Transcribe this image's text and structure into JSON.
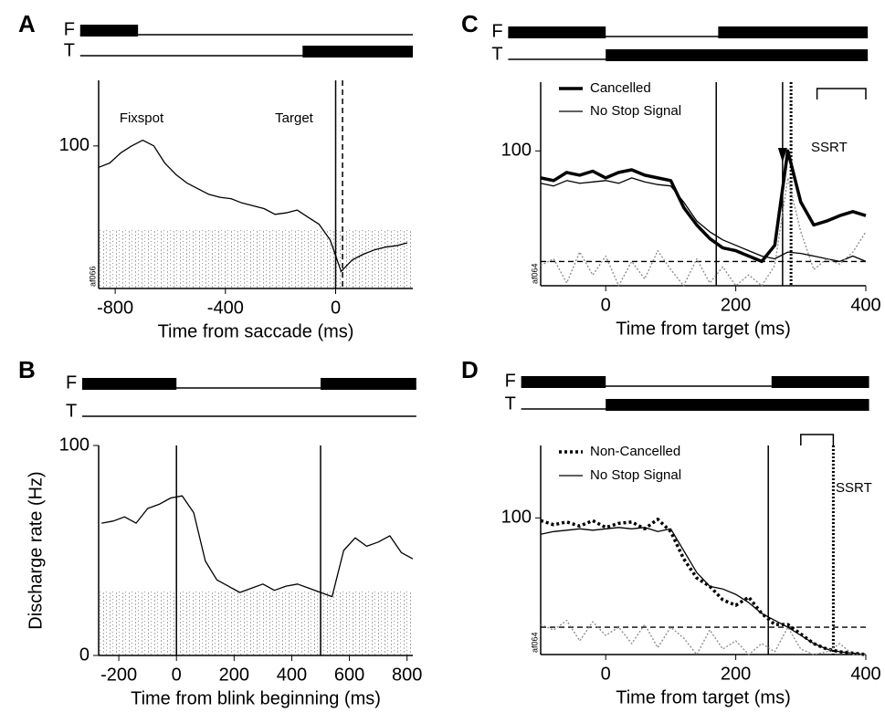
{
  "chart_data": [
    {
      "type": "line",
      "panel": "A",
      "x_label": "Time from saccade (ms)",
      "unit_id": "af066",
      "xlim": [
        -860,
        280
      ],
      "ylim": [
        0,
        146
      ],
      "xticks": [
        -800,
        -400,
        0
      ],
      "yticks": [
        100
      ],
      "x": [
        -860,
        -820,
        -780,
        -740,
        -700,
        -660,
        -620,
        -580,
        -540,
        -500,
        -460,
        -420,
        -380,
        -340,
        -300,
        -260,
        -220,
        -180,
        -140,
        -100,
        -60,
        -20,
        20,
        60,
        100,
        140,
        180,
        220,
        260
      ],
      "series": [
        {
          "style": "thin",
          "color": "#000000",
          "values": [
            85,
            88,
            95,
            100,
            104,
            100,
            88,
            80,
            74,
            70,
            66,
            64,
            63,
            60,
            58,
            56,
            52,
            53,
            55,
            50,
            45,
            34,
            12,
            20,
            24,
            27,
            29,
            30,
            32
          ]
        }
      ],
      "markers": [
        {
          "x": 0,
          "style": "solid"
        },
        {
          "x": 25,
          "style": "dashed"
        }
      ],
      "annotations": [
        "Fixspot",
        "Target"
      ],
      "timeline": {
        "range": [
          -927,
          280
        ],
        "rows": [
          {
            "label": "F",
            "on": [
              [
                -927,
                -717
              ]
            ]
          },
          {
            "label": "T",
            "on": [
              [
                -120,
                280
              ]
            ]
          }
        ]
      }
    },
    {
      "type": "line",
      "panel": "B",
      "x_label": "Time from blink beginning (ms)",
      "y_label": "Discharge rate (Hz)",
      "xlim": [
        -270,
        820
      ],
      "ylim": [
        0,
        100
      ],
      "xticks": [
        -200,
        0,
        200,
        400,
        600,
        800
      ],
      "yticks": [
        0,
        100
      ],
      "x": [
        -260,
        -220,
        -180,
        -140,
        -100,
        -60,
        -20,
        20,
        60,
        100,
        140,
        180,
        220,
        260,
        300,
        340,
        380,
        420,
        460,
        500,
        540,
        580,
        620,
        660,
        700,
        740,
        780,
        820
      ],
      "series": [
        {
          "style": "thin",
          "color": "#000000",
          "values": [
            63,
            64,
            66,
            63,
            70,
            72,
            75,
            76,
            68,
            45,
            36,
            33,
            30,
            32,
            34,
            31,
            33,
            34,
            32,
            30,
            28,
            50,
            56,
            52,
            54,
            57,
            49,
            46
          ]
        }
      ],
      "markers": [
        {
          "x": 0,
          "style": "solid"
        },
        {
          "x": 500,
          "style": "solid"
        }
      ],
      "timeline": {
        "range": [
          -327,
          832
        ],
        "rows": [
          {
            "label": "F",
            "on": [
              [
                -327,
                0
              ],
              [
                500,
                832
              ]
            ]
          },
          {
            "label": "T",
            "on": []
          }
        ]
      }
    },
    {
      "type": "line",
      "panel": "C",
      "x_label": "Time from target (ms)",
      "unit_id": "af064",
      "xlim": [
        -100,
        400
      ],
      "ylim": [
        0,
        151
      ],
      "xticks": [
        0,
        200,
        400
      ],
      "yticks": [
        100
      ],
      "x": [
        -100,
        -80,
        -60,
        -40,
        -20,
        0,
        20,
        40,
        60,
        80,
        100,
        120,
        140,
        160,
        180,
        200,
        220,
        240,
        260,
        280,
        300,
        320,
        340,
        360,
        380,
        400
      ],
      "series": [
        {
          "name": "Cancelled",
          "style": "thick",
          "color": "#000000",
          "values": [
            80,
            78,
            84,
            82,
            85,
            80,
            84,
            86,
            82,
            80,
            78,
            58,
            45,
            35,
            28,
            26,
            22,
            18,
            30,
            100,
            62,
            45,
            48,
            52,
            55,
            52
          ]
        },
        {
          "name": "No Stop Signal",
          "style": "thin",
          "color": "#000000",
          "values": [
            76,
            74,
            78,
            76,
            77,
            78,
            76,
            80,
            77,
            75,
            74,
            62,
            48,
            40,
            34,
            30,
            26,
            22,
            20,
            25,
            24,
            22,
            20,
            18,
            22,
            18
          ]
        },
        {
          "style": "dotted",
          "color": "#888888",
          "values": [
            15,
            20,
            2,
            25,
            8,
            22,
            0,
            18,
            5,
            26,
            12,
            0,
            20,
            2,
            14,
            0,
            8,
            0,
            15,
            80,
            40,
            12,
            20,
            16,
            25,
            40
          ]
        }
      ],
      "markers": [
        {
          "x": 170,
          "style": "solid"
        },
        {
          "x": 272,
          "style": "arrow"
        },
        {
          "x": 285,
          "style": "dotted"
        }
      ],
      "hlines": [
        18
      ],
      "ssrt": {
        "label": "SSRT",
        "range": [
          325,
          400
        ]
      },
      "timeline": {
        "range": [
          -150,
          403
        ],
        "rows": [
          {
            "label": "F",
            "on": [
              [
                -150,
                0
              ],
              [
                173,
                403
              ]
            ]
          },
          {
            "label": "T",
            "on": [
              [
                0,
                403
              ]
            ]
          }
        ]
      }
    },
    {
      "type": "line",
      "panel": "D",
      "x_label": "Time from target (ms)",
      "unit_id": "af064",
      "xlim": [
        -100,
        400
      ],
      "ylim": [
        0,
        153
      ],
      "xticks": [
        0,
        200,
        400
      ],
      "yticks": [
        100
      ],
      "x": [
        -100,
        -80,
        -60,
        -40,
        -20,
        0,
        20,
        40,
        60,
        80,
        100,
        120,
        140,
        160,
        180,
        200,
        220,
        240,
        260,
        280,
        300,
        320,
        340,
        360,
        380,
        400
      ],
      "series": [
        {
          "name": "Non-Cancelled",
          "style": "dotted-thick",
          "color": "#000000",
          "values": [
            98,
            95,
            97,
            94,
            98,
            93,
            96,
            97,
            92,
            99,
            90,
            70,
            56,
            50,
            40,
            36,
            42,
            30,
            22,
            22,
            15,
            8,
            4,
            2,
            1,
            0
          ]
        },
        {
          "name": "No Stop Signal",
          "style": "thin",
          "color": "#000000",
          "values": [
            88,
            90,
            91,
            92,
            91,
            92,
            93,
            92,
            93,
            90,
            92,
            76,
            60,
            50,
            48,
            44,
            38,
            30,
            25,
            20,
            14,
            8,
            4,
            2,
            1,
            0
          ]
        },
        {
          "style": "dotted",
          "color": "#888888",
          "values": [
            22,
            18,
            25,
            10,
            24,
            14,
            20,
            8,
            22,
            5,
            20,
            12,
            0,
            18,
            4,
            10,
            0,
            8,
            2,
            20,
            4,
            0,
            2,
            8,
            0,
            0
          ]
        }
      ],
      "markers": [
        {
          "x": 250,
          "style": "solid"
        },
        {
          "x": 350,
          "style": "dotted"
        }
      ],
      "hlines": [
        20
      ],
      "ssrt": {
        "label": "SSRT",
        "range": [
          300,
          350
        ]
      },
      "timeline": {
        "range": [
          -130,
          405
        ],
        "rows": [
          {
            "label": "F",
            "on": [
              [
                -130,
                0
              ],
              [
                255,
                405
              ]
            ]
          },
          {
            "label": "T",
            "on": [
              [
                0,
                405
              ]
            ]
          }
        ]
      }
    }
  ]
}
